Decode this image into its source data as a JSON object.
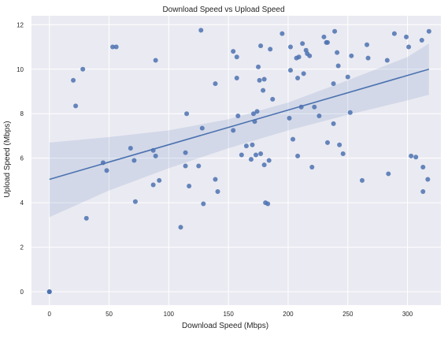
{
  "chart_data": {
    "type": "scatter",
    "title": "Download Speed vs Upload Speed",
    "xlabel": "Download Speed (Mbps)",
    "ylabel": "Upload Speed (Mbps)",
    "xlim": [
      -15,
      328
    ],
    "ylim": [
      -0.6,
      12.4
    ],
    "xticks": [
      0,
      50,
      100,
      150,
      200,
      250,
      300
    ],
    "yticks": [
      0,
      2,
      4,
      6,
      8,
      10,
      12
    ],
    "grid": true,
    "legend": "none",
    "style": {
      "background": "#eaeaf2",
      "grid_color": "#ffffff",
      "point_color": "#4c72b0",
      "line_color": "#4c72b0",
      "band_color": "#4c72b0"
    },
    "regression": {
      "x": [
        0,
        318
      ],
      "y": [
        5.05,
        10.0
      ]
    },
    "confidence_band": {
      "x": [
        0,
        50,
        100,
        150,
        200,
        250,
        300,
        318
      ],
      "lower": [
        3.35,
        4.55,
        5.55,
        6.45,
        7.25,
        7.95,
        8.6,
        8.85
      ],
      "upper": [
        6.7,
        6.95,
        7.25,
        7.75,
        8.5,
        9.5,
        10.55,
        11.15
      ]
    },
    "points": [
      [
        0,
        0
      ],
      [
        0,
        0
      ],
      [
        0,
        0
      ],
      [
        20,
        9.5
      ],
      [
        22,
        8.35
      ],
      [
        28,
        10.0
      ],
      [
        31,
        3.3
      ],
      [
        45,
        5.8
      ],
      [
        48,
        5.45
      ],
      [
        53,
        11.0
      ],
      [
        56,
        11.0
      ],
      [
        68,
        6.45
      ],
      [
        71,
        5.9
      ],
      [
        72,
        4.05
      ],
      [
        87,
        6.35
      ],
      [
        87,
        4.8
      ],
      [
        89,
        10.4
      ],
      [
        89,
        6.1
      ],
      [
        92,
        5.0
      ],
      [
        110,
        2.9
      ],
      [
        114,
        6.25
      ],
      [
        114,
        5.65
      ],
      [
        115,
        8.0
      ],
      [
        117,
        4.75
      ],
      [
        125,
        5.65
      ],
      [
        127,
        11.75
      ],
      [
        128,
        7.35
      ],
      [
        129,
        3.95
      ],
      [
        139,
        5.05
      ],
      [
        139,
        9.35
      ],
      [
        141,
        4.5
      ],
      [
        154,
        10.8
      ],
      [
        154,
        7.25
      ],
      [
        157,
        9.6
      ],
      [
        157,
        10.55
      ],
      [
        158,
        7.9
      ],
      [
        161,
        6.15
      ],
      [
        165,
        6.55
      ],
      [
        169,
        5.95
      ],
      [
        170,
        6.6
      ],
      [
        171,
        8.0
      ],
      [
        172,
        7.65
      ],
      [
        173,
        6.15
      ],
      [
        174,
        8.1
      ],
      [
        175,
        10.1
      ],
      [
        176,
        9.5
      ],
      [
        177,
        11.05
      ],
      [
        177,
        6.2
      ],
      [
        179,
        9.05
      ],
      [
        180,
        9.55
      ],
      [
        180,
        5.7
      ],
      [
        181,
        4.0
      ],
      [
        183,
        3.95
      ],
      [
        184,
        5.9
      ],
      [
        185,
        10.9
      ],
      [
        187,
        8.65
      ],
      [
        195,
        11.6
      ],
      [
        201,
        7.8
      ],
      [
        202,
        9.95
      ],
      [
        202,
        11.0
      ],
      [
        204,
        6.85
      ],
      [
        207,
        10.5
      ],
      [
        208,
        9.6
      ],
      [
        208,
        6.1
      ],
      [
        209,
        10.55
      ],
      [
        211,
        8.3
      ],
      [
        212,
        11.15
      ],
      [
        213,
        9.8
      ],
      [
        215,
        10.85
      ],
      [
        216,
        10.7
      ],
      [
        218,
        10.6
      ],
      [
        220,
        5.6
      ],
      [
        222,
        8.3
      ],
      [
        226,
        7.9
      ],
      [
        230,
        11.45
      ],
      [
        232,
        11.2
      ],
      [
        233,
        11.2
      ],
      [
        233,
        6.7
      ],
      [
        238,
        7.55
      ],
      [
        238,
        9.35
      ],
      [
        239,
        11.7
      ],
      [
        241,
        10.75
      ],
      [
        242,
        10.15
      ],
      [
        243,
        6.6
      ],
      [
        246,
        6.2
      ],
      [
        250,
        9.65
      ],
      [
        252,
        8.05
      ],
      [
        253,
        10.6
      ],
      [
        262,
        5.0
      ],
      [
        266,
        11.1
      ],
      [
        267,
        10.5
      ],
      [
        283,
        10.4
      ],
      [
        284,
        5.3
      ],
      [
        289,
        11.6
      ],
      [
        299,
        11.45
      ],
      [
        301,
        11.0
      ],
      [
        303,
        6.1
      ],
      [
        307,
        6.05
      ],
      [
        312,
        11.3
      ],
      [
        313,
        5.6
      ],
      [
        313,
        4.5
      ],
      [
        317,
        5.05
      ],
      [
        318,
        11.7
      ]
    ]
  }
}
